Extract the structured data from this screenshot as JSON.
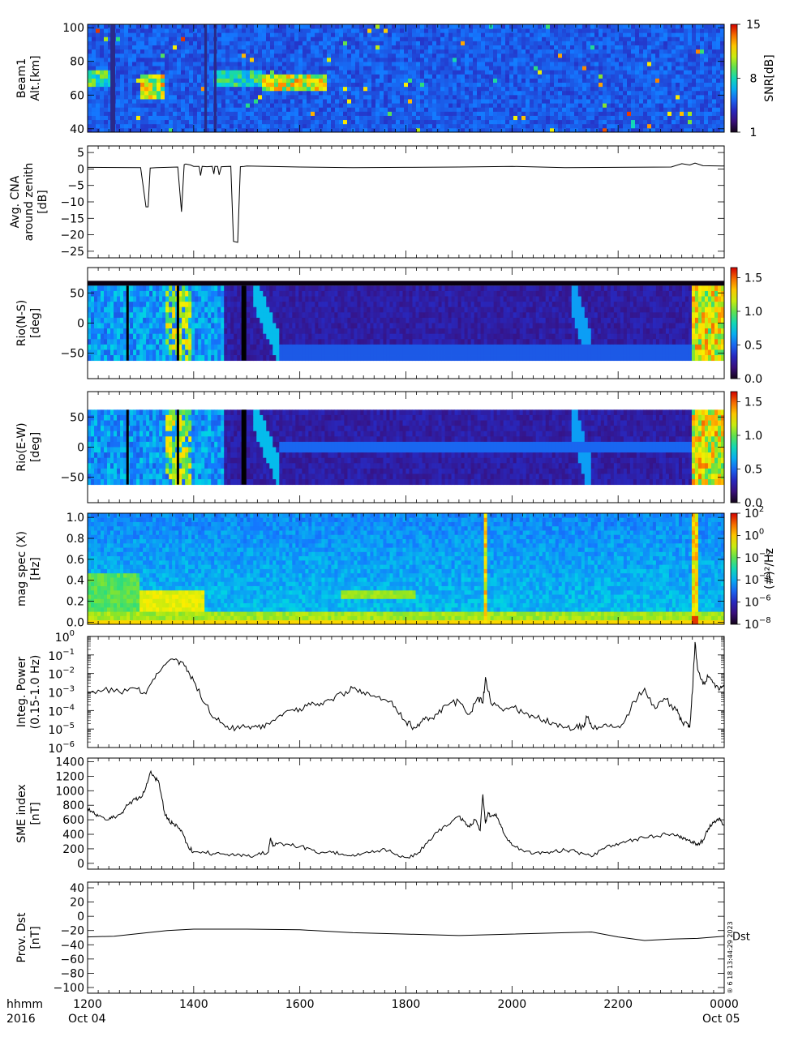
{
  "time_axis": {
    "range": [
      1200,
      2400
    ],
    "ticks": [
      "1200",
      "1400",
      "1600",
      "1800",
      "2000",
      "2200",
      "0000"
    ],
    "row1_label": "hhmm",
    "row2_label": "2016",
    "start_date": "Oct 04",
    "end_date": "Oct 05"
  },
  "stamp": "® 6 18 13:44:29 2023",
  "chart_data": [
    {
      "type": "heatmap",
      "panel": "beam-altitude-snr",
      "ylabel_lines": [
        "Beam1",
        "Alt.[km]"
      ],
      "ylim": [
        38,
        102
      ],
      "yticks": [
        40,
        60,
        80,
        100
      ],
      "colorbar": {
        "label": "SNR[dB]",
        "ticks": [
          {
            "label": "15",
            "frac": 1.0
          },
          {
            "label": "8",
            "frac": 0.5
          },
          {
            "label": "1",
            "frac": 0.0
          }
        ]
      },
      "data_gaps_hhmm": [
        [
          1243,
          1252
        ],
        [
          1420,
          1425
        ],
        [
          1438,
          1443
        ]
      ],
      "enhancements": [
        {
          "t": [
            1300,
            1345
          ],
          "alt": [
            58,
            72
          ],
          "level": 0.85
        },
        {
          "t": [
            1530,
            1650
          ],
          "alt": [
            63,
            72
          ],
          "level": 0.85
        },
        {
          "t": [
            1440,
            1530
          ],
          "alt": [
            66,
            75
          ],
          "level": 0.6
        }
      ]
    },
    {
      "type": "line",
      "panel": "avg-cna",
      "ylabel_lines": [
        "Avg. CNA",
        "around zenith",
        "[dB]"
      ],
      "ylim": [
        -27,
        7
      ],
      "yticks": [
        5,
        0,
        -5,
        -10,
        -15,
        -20,
        -25
      ],
      "x": [
        1200,
        1300,
        1310,
        1314,
        1318,
        1330,
        1370,
        1377,
        1382,
        1385,
        1394,
        1400,
        1410,
        1413,
        1416,
        1425,
        1435,
        1438,
        1440,
        1445,
        1448,
        1452,
        1470,
        1475,
        1483,
        1488,
        1495,
        1500,
        1600,
        1700,
        1800,
        1900,
        2000,
        2100,
        2200,
        2300,
        2320,
        2335,
        2345,
        2360,
        2400
      ],
      "y": [
        0.5,
        0.4,
        -11.5,
        -11.5,
        0.3,
        0.4,
        0.6,
        -13,
        1.3,
        1.5,
        1.2,
        0.8,
        0.8,
        -2,
        0.8,
        0.7,
        0.8,
        -1.5,
        0.8,
        0.8,
        -1.8,
        0.7,
        0.8,
        -22,
        -22.3,
        0.7,
        0.8,
        0.9,
        0.6,
        0.4,
        0.5,
        0.6,
        0.8,
        0.4,
        0.5,
        0.6,
        1.6,
        1.2,
        1.8,
        1.0,
        0.9
      ]
    },
    {
      "type": "heatmap",
      "panel": "riometer-ns",
      "ylabel_lines": [
        "Rio(N-S)",
        "[deg]"
      ],
      "ylim": [
        -92,
        92
      ],
      "yticks": [
        50,
        0,
        -50
      ],
      "colorbar": {
        "label": "",
        "ticks": [
          {
            "label": "1.5",
            "frac": 0.909
          },
          {
            "label": "1.0",
            "frac": 0.606
          },
          {
            "label": "0.5",
            "frac": 0.303
          },
          {
            "label": "0.0",
            "frac": 0.0
          }
        ]
      },
      "band": [
        -62,
        62
      ]
    },
    {
      "type": "heatmap",
      "panel": "riometer-ew",
      "ylabel_lines": [
        "Rio(E-W)",
        "[deg]"
      ],
      "ylim": [
        -92,
        92
      ],
      "yticks": [
        50,
        0,
        -50
      ],
      "colorbar": {
        "label": "",
        "ticks": [
          {
            "label": "1.5",
            "frac": 0.909
          },
          {
            "label": "1.0",
            "frac": 0.606
          },
          {
            "label": "0.5",
            "frac": 0.303
          },
          {
            "label": "0.0",
            "frac": 0.0
          }
        ]
      },
      "band": [
        -62,
        62
      ]
    },
    {
      "type": "heatmap",
      "panel": "magnetometer-spectrum",
      "ylabel_lines": [
        "mag spec (X)",
        "[Hz]"
      ],
      "ylim": [
        -0.02,
        1.04
      ],
      "yticks": [
        1.0,
        0.8,
        0.6,
        0.4,
        0.2,
        0.0
      ],
      "colorbar": {
        "label": "(#)²/Hz",
        "ticks": [
          {
            "base": "10",
            "exp": "2",
            "frac": 1.0
          },
          {
            "base": "10",
            "exp": "0",
            "frac": 0.8
          },
          {
            "base": "10",
            "exp": "−2",
            "frac": 0.6
          },
          {
            "base": "10",
            "exp": "−4",
            "frac": 0.4
          },
          {
            "base": "10",
            "exp": "−6",
            "frac": 0.2
          },
          {
            "base": "10",
            "exp": "−8",
            "frac": 0.0
          }
        ]
      }
    },
    {
      "type": "line",
      "panel": "integrated-power",
      "ylabel_lines": [
        "Integ. Power",
        "(0.15-1.0 Hz)"
      ],
      "yscale": "log",
      "ylim": [
        -6,
        0
      ],
      "yticks_exp": [
        "0",
        "−1",
        "−2",
        "−3",
        "−4",
        "−5",
        "−6"
      ],
      "ytick_base": "10",
      "x": [
        1200,
        1230,
        1260,
        1290,
        1310,
        1330,
        1350,
        1370,
        1385,
        1400,
        1420,
        1440,
        1460,
        1480,
        1500,
        1520,
        1540,
        1560,
        1580,
        1600,
        1620,
        1640,
        1660,
        1680,
        1700,
        1720,
        1740,
        1760,
        1780,
        1800,
        1815,
        1830,
        1845,
        1860,
        1880,
        1900,
        1920,
        1935,
        1945,
        1950,
        1960,
        1980,
        2000,
        2020,
        2040,
        2060,
        2080,
        2100,
        2120,
        2135,
        2140,
        2150,
        2170,
        2190,
        2210,
        2230,
        2250,
        2270,
        2290,
        2310,
        2320,
        2330,
        2335,
        2340,
        2345,
        2350,
        2360,
        2370,
        2380,
        2390,
        2400
      ],
      "y": [
        -3.0,
        -2.9,
        -3.0,
        -2.8,
        -3.1,
        -2.0,
        -1.4,
        -1.3,
        -1.6,
        -2.4,
        -3.6,
        -4.4,
        -4.9,
        -4.95,
        -4.9,
        -4.9,
        -4.7,
        -4.3,
        -4.0,
        -3.9,
        -3.7,
        -3.6,
        -3.4,
        -3.1,
        -2.8,
        -3.0,
        -3.2,
        -3.4,
        -3.8,
        -4.6,
        -4.9,
        -4.6,
        -4.4,
        -4.2,
        -3.7,
        -3.5,
        -4.2,
        -3.3,
        -3.6,
        -2.2,
        -3.6,
        -3.9,
        -3.8,
        -4.1,
        -4.3,
        -4.5,
        -4.7,
        -4.9,
        -4.9,
        -4.9,
        -4.3,
        -4.9,
        -4.9,
        -4.9,
        -4.7,
        -3.5,
        -2.8,
        -3.9,
        -3.4,
        -4.0,
        -4.6,
        -4.7,
        -4.9,
        -3.0,
        -0.3,
        -1.8,
        -2.6,
        -2.2,
        -2.5,
        -2.9,
        -2.6
      ]
    },
    {
      "type": "line",
      "panel": "sme-index",
      "ylabel_lines": [
        "SME index",
        "[nT]"
      ],
      "ylim": [
        -80,
        1450
      ],
      "yticks": [
        0,
        200,
        400,
        600,
        800,
        1000,
        1200,
        1400
      ],
      "x": [
        1200,
        1210,
        1220,
        1240,
        1250,
        1265,
        1275,
        1290,
        1300,
        1310,
        1318,
        1325,
        1335,
        1345,
        1352,
        1360,
        1370,
        1380,
        1390,
        1400,
        1420,
        1440,
        1460,
        1480,
        1500,
        1520,
        1540,
        1545,
        1550,
        1560,
        1580,
        1600,
        1620,
        1640,
        1660,
        1680,
        1700,
        1720,
        1740,
        1760,
        1780,
        1800,
        1820,
        1840,
        1860,
        1880,
        1900,
        1910,
        1920,
        1930,
        1940,
        1945,
        1950,
        1955,
        1960,
        1970,
        1980,
        1990,
        2000,
        2020,
        2040,
        2060,
        2080,
        2100,
        2120,
        2140,
        2150,
        2170,
        2190,
        2210,
        2230,
        2250,
        2270,
        2290,
        2310,
        2320,
        2330,
        2340,
        2350,
        2360,
        2370,
        2380,
        2390,
        2400
      ],
      "y": [
        760,
        700,
        650,
        600,
        640,
        700,
        800,
        880,
        900,
        1050,
        1250,
        1200,
        1100,
        700,
        600,
        550,
        500,
        400,
        220,
        160,
        150,
        130,
        120,
        110,
        100,
        120,
        150,
        350,
        250,
        280,
        260,
        230,
        200,
        150,
        150,
        130,
        120,
        140,
        150,
        200,
        120,
        80,
        120,
        280,
        430,
        530,
        650,
        580,
        500,
        600,
        450,
        950,
        550,
        700,
        640,
        680,
        500,
        350,
        250,
        180,
        130,
        150,
        170,
        180,
        160,
        120,
        90,
        200,
        250,
        300,
        330,
        350,
        370,
        400,
        380,
        350,
        330,
        300,
        250,
        320,
        480,
        560,
        620,
        520
      ]
    },
    {
      "type": "line",
      "panel": "dst",
      "ylabel_lines": [
        "Prov. Dst",
        "[nT]"
      ],
      "ylim": [
        -108,
        48
      ],
      "yticks": [
        40,
        20,
        0,
        -20,
        -40,
        -60,
        -80,
        -100
      ],
      "series_label": "Dst",
      "x": [
        1200,
        1250,
        1300,
        1350,
        1400,
        1500,
        1600,
        1700,
        1800,
        1900,
        2000,
        2100,
        2150,
        2200,
        2250,
        2300,
        2350,
        2400
      ],
      "y": [
        -29,
        -28,
        -24,
        -20,
        -18,
        -18,
        -19,
        -23,
        -25,
        -27,
        -25,
        -23,
        -22,
        -29,
        -34,
        -32,
        -31,
        -28
      ]
    }
  ]
}
